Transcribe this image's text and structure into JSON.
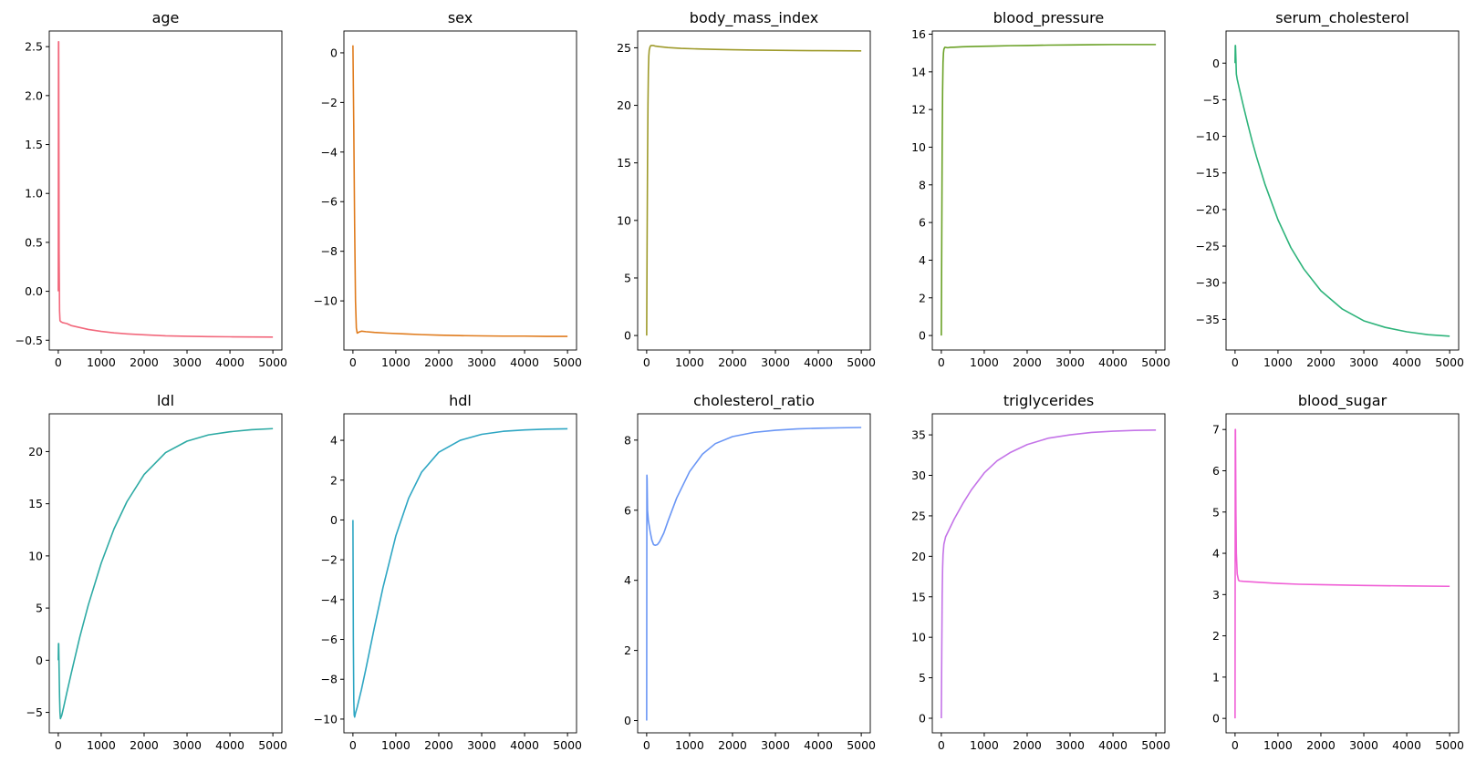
{
  "chart_data": [
    {
      "type": "line",
      "title": "age",
      "color": "#f2687c",
      "xlim": [
        -210,
        5210
      ],
      "ylim": [
        -0.6,
        2.66
      ],
      "xticks": [
        0,
        1000,
        2000,
        3000,
        4000,
        5000
      ],
      "yticks": [
        -0.5,
        0.0,
        0.5,
        1.0,
        1.5,
        2.0,
        2.5
      ],
      "ytick_labels": [
        "−0.5",
        "0.0",
        "0.5",
        "1.0",
        "1.5",
        "2.0",
        "2.5"
      ],
      "x": [
        0,
        5,
        10,
        20,
        30,
        40,
        60,
        100,
        200,
        300,
        500,
        700,
        1000,
        1300,
        1600,
        2000,
        2500,
        3000,
        3500,
        4000,
        4500,
        5000
      ],
      "y": [
        0,
        2.55,
        2.55,
        0.4,
        -0.2,
        -0.3,
        -0.31,
        -0.32,
        -0.33,
        -0.35,
        -0.37,
        -0.39,
        -0.41,
        -0.425,
        -0.435,
        -0.445,
        -0.455,
        -0.46,
        -0.463,
        -0.465,
        -0.467,
        -0.468
      ]
    },
    {
      "type": "line",
      "title": "sex",
      "color": "#e07c1e",
      "xlim": [
        -210,
        5210
      ],
      "ylim": [
        -11.98,
        0.88
      ],
      "xticks": [
        0,
        1000,
        2000,
        3000,
        4000,
        5000
      ],
      "yticks": [
        -10,
        -8,
        -6,
        -4,
        -2,
        0
      ],
      "ytick_labels": [
        "−10",
        "−8",
        "−6",
        "−4",
        "−2",
        "0"
      ],
      "x": [
        0,
        20,
        40,
        60,
        80,
        100,
        150,
        200,
        300,
        500,
        800,
        1200,
        1600,
        2000,
        2500,
        3000,
        3500,
        4000,
        4500,
        5000
      ],
      "y": [
        0.3,
        -3,
        -7,
        -10,
        -11.1,
        -11.3,
        -11.25,
        -11.22,
        -11.24,
        -11.27,
        -11.3,
        -11.33,
        -11.36,
        -11.38,
        -11.4,
        -11.41,
        -11.42,
        -11.42,
        -11.43,
        -11.43
      ]
    },
    {
      "type": "line",
      "title": "body_mass_index",
      "color": "#9e9a2a",
      "xlim": [
        -210,
        5210
      ],
      "ylim": [
        -1.26,
        26.46
      ],
      "xticks": [
        0,
        1000,
        2000,
        3000,
        4000,
        5000
      ],
      "yticks": [
        0,
        5,
        10,
        15,
        20,
        25
      ],
      "ytick_labels": [
        "0",
        "5",
        "10",
        "15",
        "20",
        "25"
      ],
      "x": [
        0,
        10,
        20,
        30,
        40,
        50,
        60,
        80,
        100,
        150,
        200,
        300,
        500,
        800,
        1200,
        1600,
        2000,
        2500,
        3000,
        3500,
        4000,
        4500,
        5000
      ],
      "y": [
        0,
        8,
        15,
        20,
        23,
        24.3,
        24.8,
        25.1,
        25.2,
        25.2,
        25.15,
        25.1,
        25.02,
        24.95,
        24.9,
        24.86,
        24.83,
        24.8,
        24.78,
        24.76,
        24.75,
        24.74,
        24.73
      ]
    },
    {
      "type": "line",
      "title": "blood_pressure",
      "color": "#6aa126",
      "xlim": [
        -210,
        5210
      ],
      "ylim": [
        -0.77,
        16.17
      ],
      "xticks": [
        0,
        1000,
        2000,
        3000,
        4000,
        5000
      ],
      "yticks": [
        0,
        2,
        4,
        6,
        8,
        10,
        12,
        14,
        16
      ],
      "ytick_labels": [
        "0",
        "2",
        "4",
        "6",
        "8",
        "10",
        "12",
        "14",
        "16"
      ],
      "x": [
        0,
        10,
        20,
        30,
        40,
        50,
        60,
        80,
        100,
        150,
        200,
        300,
        500,
        800,
        1200,
        1600,
        2000,
        2500,
        3000,
        3500,
        4000,
        4500,
        5000
      ],
      "y": [
        0,
        5,
        10,
        13,
        14.5,
        15,
        15.2,
        15.3,
        15.3,
        15.28,
        15.3,
        15.31,
        15.33,
        15.35,
        15.37,
        15.39,
        15.4,
        15.42,
        15.43,
        15.44,
        15.45,
        15.45,
        15.45
      ]
    },
    {
      "type": "line",
      "title": "serum_cholesterol",
      "color": "#2db37a",
      "xlim": [
        -210,
        5210
      ],
      "ylim": [
        -39.19,
        4.39
      ],
      "xticks": [
        0,
        1000,
        2000,
        3000,
        4000,
        5000
      ],
      "yticks": [
        -35,
        -30,
        -25,
        -20,
        -15,
        -10,
        -5,
        0
      ],
      "ytick_labels": [
        "−35",
        "−30",
        "−25",
        "−20",
        "−15",
        "−10",
        "−5",
        "0"
      ],
      "x": [
        0,
        5,
        10,
        20,
        30,
        50,
        100,
        200,
        300,
        400,
        500,
        700,
        1000,
        1300,
        1600,
        2000,
        2500,
        3000,
        3500,
        4000,
        4500,
        5000
      ],
      "y": [
        0,
        2.4,
        2.4,
        0.5,
        -1.5,
        -2.2,
        -3.5,
        -6,
        -8.4,
        -10.7,
        -12.8,
        -16.6,
        -21.4,
        -25.2,
        -28.1,
        -31.1,
        -33.6,
        -35.2,
        -36.1,
        -36.7,
        -37.1,
        -37.3
      ]
    },
    {
      "type": "line",
      "title": "ldl",
      "color": "#2daaa4",
      "xlim": [
        -210,
        5210
      ],
      "ylim": [
        -6.96,
        23.62
      ],
      "xticks": [
        0,
        1000,
        2000,
        3000,
        4000,
        5000
      ],
      "yticks": [
        -5,
        0,
        5,
        10,
        15,
        20
      ],
      "ytick_labels": [
        "−5",
        "0",
        "5",
        "10",
        "15",
        "20"
      ],
      "x": [
        0,
        5,
        10,
        20,
        30,
        40,
        50,
        80,
        120,
        200,
        300,
        500,
        700,
        1000,
        1300,
        1600,
        2000,
        2500,
        3000,
        3500,
        4000,
        4500,
        5000
      ],
      "y": [
        0,
        1.6,
        1.6,
        -1,
        -3.5,
        -5,
        -5.6,
        -5.3,
        -4.6,
        -3.1,
        -1.3,
        2.2,
        5.3,
        9.3,
        12.6,
        15.2,
        17.8,
        19.9,
        21,
        21.6,
        21.9,
        22.1,
        22.2
      ]
    },
    {
      "type": "line",
      "title": "hdl",
      "color": "#2ea6c3",
      "xlim": [
        -210,
        5210
      ],
      "ylim": [
        -10.69,
        5.33
      ],
      "xticks": [
        0,
        1000,
        2000,
        3000,
        4000,
        5000
      ],
      "yticks": [
        -10,
        -8,
        -6,
        -4,
        -2,
        0,
        2,
        4
      ],
      "ytick_labels": [
        "−10",
        "−8",
        "−6",
        "−4",
        "−2",
        "0",
        "2",
        "4"
      ],
      "x": [
        0,
        10,
        20,
        30,
        40,
        60,
        100,
        200,
        300,
        500,
        700,
        1000,
        1300,
        1600,
        2000,
        2500,
        3000,
        3500,
        4000,
        4500,
        5000
      ],
      "y": [
        0,
        -6,
        -9,
        -9.8,
        -9.9,
        -9.7,
        -9.4,
        -8.5,
        -7.5,
        -5.4,
        -3.4,
        -0.8,
        1.1,
        2.4,
        3.4,
        4,
        4.3,
        4.45,
        4.52,
        4.56,
        4.58
      ]
    },
    {
      "type": "line",
      "title": "cholesterol_ratio",
      "color": "#6a96f5",
      "xlim": [
        -210,
        5210
      ],
      "ylim": [
        -0.35,
        8.75
      ],
      "xticks": [
        0,
        1000,
        2000,
        3000,
        4000,
        5000
      ],
      "yticks": [
        0,
        2,
        4,
        6,
        8
      ],
      "ytick_labels": [
        "0",
        "2",
        "4",
        "6",
        "8"
      ],
      "x": [
        0,
        5,
        10,
        20,
        40,
        80,
        120,
        160,
        200,
        250,
        300,
        400,
        500,
        700,
        1000,
        1300,
        1600,
        2000,
        2500,
        3000,
        3500,
        4000,
        4500,
        5000
      ],
      "y": [
        0,
        7,
        6.9,
        6,
        5.7,
        5.4,
        5.15,
        5.02,
        5,
        5.02,
        5.1,
        5.35,
        5.7,
        6.35,
        7.1,
        7.6,
        7.9,
        8.1,
        8.22,
        8.28,
        8.32,
        8.34,
        8.35,
        8.36
      ]
    },
    {
      "type": "line",
      "title": "triglycerides",
      "color": "#c474e8",
      "xlim": [
        -210,
        5210
      ],
      "ylim": [
        -1.8,
        37.6
      ],
      "xticks": [
        0,
        1000,
        2000,
        3000,
        4000,
        5000
      ],
      "yticks": [
        0,
        5,
        10,
        15,
        20,
        25,
        30,
        35
      ],
      "ytick_labels": [
        "0",
        "5",
        "10",
        "15",
        "20",
        "25",
        "30",
        "35"
      ],
      "x": [
        0,
        10,
        20,
        30,
        40,
        60,
        100,
        200,
        300,
        500,
        700,
        1000,
        1300,
        1600,
        2000,
        2500,
        3000,
        3500,
        4000,
        4500,
        5000
      ],
      "y": [
        0,
        8,
        15,
        18.5,
        20.2,
        21.5,
        22.4,
        23.5,
        24.6,
        26.5,
        28.2,
        30.3,
        31.8,
        32.8,
        33.8,
        34.6,
        35,
        35.3,
        35.45,
        35.55,
        35.6
      ]
    },
    {
      "type": "line",
      "title": "blood_sugar",
      "color": "#f05fd6",
      "xlim": [
        -210,
        5210
      ],
      "ylim": [
        -0.35,
        7.38
      ],
      "xticks": [
        0,
        1000,
        2000,
        3000,
        4000,
        5000
      ],
      "yticks": [
        0,
        1,
        2,
        3,
        4,
        5,
        6,
        7
      ],
      "ytick_labels": [
        "0",
        "1",
        "2",
        "3",
        "4",
        "5",
        "6",
        "7"
      ],
      "x": [
        0,
        5,
        10,
        20,
        30,
        50,
        80,
        100,
        200,
        500,
        1000,
        1500,
        2000,
        3000,
        4000,
        5000
      ],
      "y": [
        0,
        7,
        7,
        5,
        4,
        3.5,
        3.35,
        3.33,
        3.32,
        3.3,
        3.27,
        3.25,
        3.24,
        3.22,
        3.21,
        3.2
      ]
    }
  ]
}
